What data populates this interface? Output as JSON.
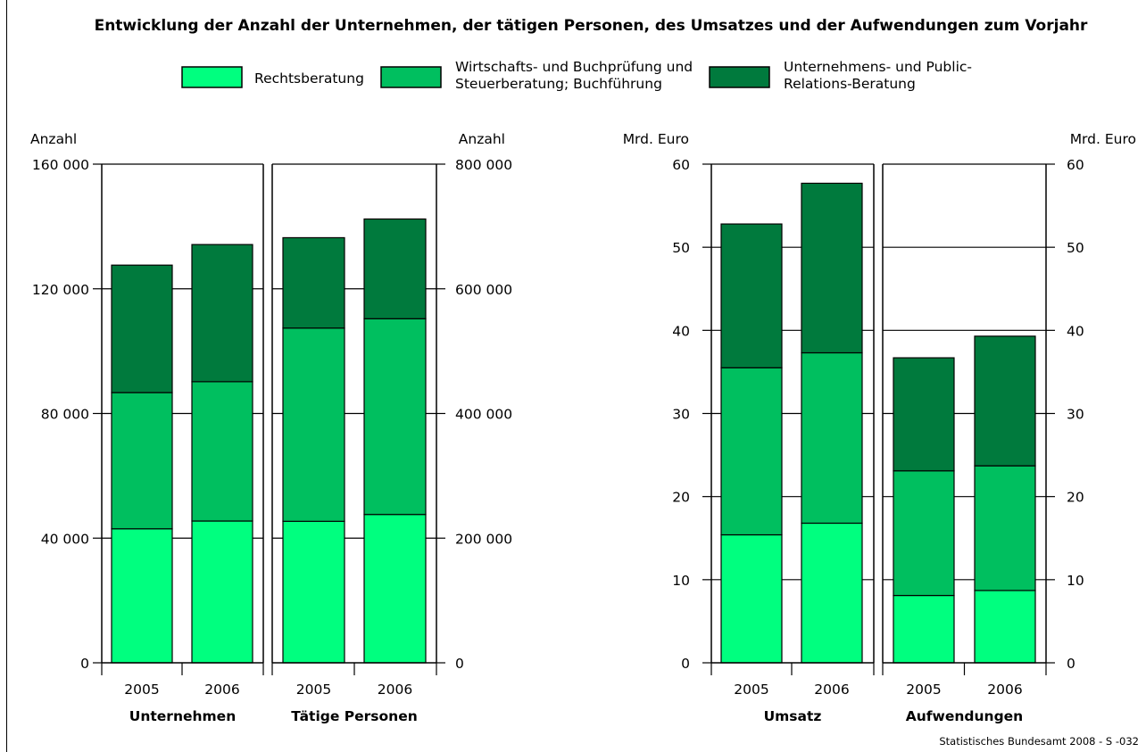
{
  "title": "Entwicklung der Anzahl der Unternehmen, der tätigen Personen, des Umsatzes und der Aufwendungen zum Vorjahr",
  "source": "Statistisches Bundesamt 2008 - S -032",
  "colors": {
    "series": [
      "#00ff7f",
      "#00bf5f",
      "#007a3d"
    ],
    "frame": "#000000"
  },
  "legend": [
    {
      "lines": [
        "Rechtsberatung"
      ]
    },
    {
      "lines": [
        "Wirtschafts- und Buchprüfung und",
        "Steuerberatung; Buchführung"
      ]
    },
    {
      "lines": [
        "Unternehmens- und Public-",
        "Relations-Beratung"
      ]
    }
  ],
  "units": {
    "left_chart_left": "Anzahl",
    "left_chart_right": "Anzahl",
    "right_chart_left": "Mrd. Euro",
    "right_chart_right": "Mrd. Euro"
  },
  "chart_data": [
    {
      "type": "bar",
      "stacked": true,
      "group_label": "Unternehmen",
      "categories": [
        "2005",
        "2006"
      ],
      "series": [
        {
          "name": "Rechtsberatung",
          "values": [
            43000,
            45500
          ]
        },
        {
          "name": "Wirtschafts- und Buchprüfung und Steuerberatung; Buchführung",
          "values": [
            43700,
            44700
          ]
        },
        {
          "name": "Unternehmens- und Public-Relations-Beratung",
          "values": [
            40900,
            44000
          ]
        }
      ],
      "ylim": [
        0,
        160000
      ],
      "yticks": [
        "0",
        "40 000",
        "80 000",
        "120 000",
        "160 000"
      ],
      "ylabel": "Anzahl",
      "axis": "left"
    },
    {
      "type": "bar",
      "stacked": true,
      "group_label": "Tätige Personen",
      "categories": [
        "2005",
        "2006"
      ],
      "series": [
        {
          "name": "Rechtsberatung",
          "values": [
            227000,
            238000
          ]
        },
        {
          "name": "Wirtschafts- und Buchprüfung und Steuerberatung; Buchführung",
          "values": [
            310000,
            314000
          ]
        },
        {
          "name": "Unternehmens- und Public-Relations-Beratung",
          "values": [
            145000,
            160000
          ]
        }
      ],
      "ylim": [
        0,
        800000
      ],
      "yticks": [
        "0",
        "200 000",
        "400 000",
        "600 000",
        "800 000"
      ],
      "ylabel": "Anzahl",
      "axis": "right"
    },
    {
      "type": "bar",
      "stacked": true,
      "group_label": "Umsatz",
      "categories": [
        "2005",
        "2006"
      ],
      "series": [
        {
          "name": "Rechtsberatung",
          "values": [
            15.4,
            16.8
          ]
        },
        {
          "name": "Wirtschafts- und Buchprüfung und Steuerberatung; Buchführung",
          "values": [
            20.1,
            20.5
          ]
        },
        {
          "name": "Unternehmens- und Public-Relations-Beratung",
          "values": [
            17.3,
            20.4
          ]
        }
      ],
      "ylim": [
        0,
        60
      ],
      "yticks": [
        "0",
        "10",
        "20",
        "30",
        "40",
        "50",
        "60"
      ],
      "ylabel": "Mrd. Euro",
      "axis": "left"
    },
    {
      "type": "bar",
      "stacked": true,
      "group_label": "Aufwendungen",
      "categories": [
        "2005",
        "2006"
      ],
      "series": [
        {
          "name": "Rechtsberatung",
          "values": [
            8.1,
            8.7
          ]
        },
        {
          "name": "Wirtschafts- und Buchprüfung und Steuerberatung; Buchführung",
          "values": [
            15.0,
            15.0
          ]
        },
        {
          "name": "Unternehmens- und Public-Relations-Beratung",
          "values": [
            13.6,
            15.6
          ]
        }
      ],
      "ylim": [
        0,
        60
      ],
      "yticks": [
        "0",
        "10",
        "20",
        "30",
        "40",
        "50",
        "60"
      ],
      "ylabel": "Mrd. Euro",
      "axis": "right"
    }
  ]
}
